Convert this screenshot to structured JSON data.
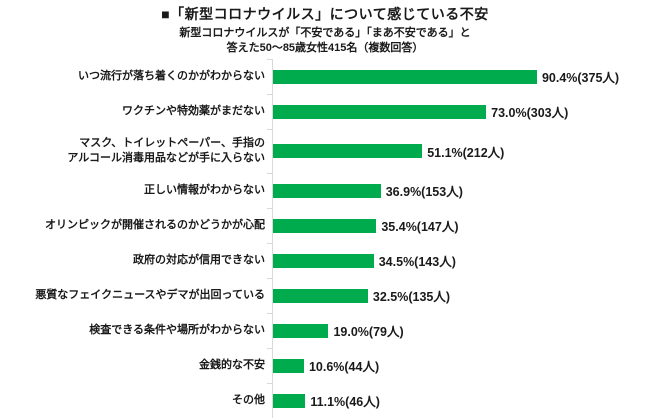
{
  "chart_data": {
    "type": "bar",
    "orientation": "horizontal",
    "title": "■「新型コロナウイルス」について感じている不安",
    "subtitle_line1": "新型コロナウイルスが「不安である」「まあ不安である」と",
    "subtitle_line2": "答えた50～85歳女性415名（複数回答）",
    "xlabel": "",
    "ylabel": "",
    "xlim": [
      0,
      100
    ],
    "unit": "%",
    "respondents_total": 415,
    "bar_color": "#00ab4e",
    "axis_color": "#d9d9d9",
    "legend": "none",
    "grid": false,
    "items": [
      {
        "label": "いつ流行が落ち着くのかがわからない",
        "percent": 90.4,
        "count": 375,
        "value_label": "90.4%(375人)",
        "two_line": false
      },
      {
        "label": "ワクチンや特効薬がまだない",
        "percent": 73.0,
        "count": 303,
        "value_label": "73.0%(303人)",
        "two_line": false
      },
      {
        "label": "マスク、トイレットペーパー、手指の\nアルコール消毒用品などが手に入らない",
        "percent": 51.1,
        "count": 212,
        "value_label": "51.1%(212人)",
        "two_line": true
      },
      {
        "label": "正しい情報がわからない",
        "percent": 36.9,
        "count": 153,
        "value_label": "36.9%(153人)",
        "two_line": false
      },
      {
        "label": "オリンピックが開催されるのかどうかが心配",
        "percent": 35.4,
        "count": 147,
        "value_label": "35.4%(147人)",
        "two_line": false
      },
      {
        "label": "政府の対応が信用できない",
        "percent": 34.5,
        "count": 143,
        "value_label": "34.5%(143人)",
        "two_line": false
      },
      {
        "label": "悪質なフェイクニュースやデマが出回っている",
        "percent": 32.5,
        "count": 135,
        "value_label": "32.5%(135人)",
        "two_line": false
      },
      {
        "label": "検査できる条件や場所がわからない",
        "percent": 19.0,
        "count": 79,
        "value_label": "19.0%(79人)",
        "two_line": false
      },
      {
        "label": "金銭的な不安",
        "percent": 10.6,
        "count": 44,
        "value_label": "10.6%(44人)",
        "two_line": false
      },
      {
        "label": "その他",
        "percent": 11.1,
        "count": 46,
        "value_label": "11.1%(46人)",
        "two_line": false
      }
    ]
  }
}
